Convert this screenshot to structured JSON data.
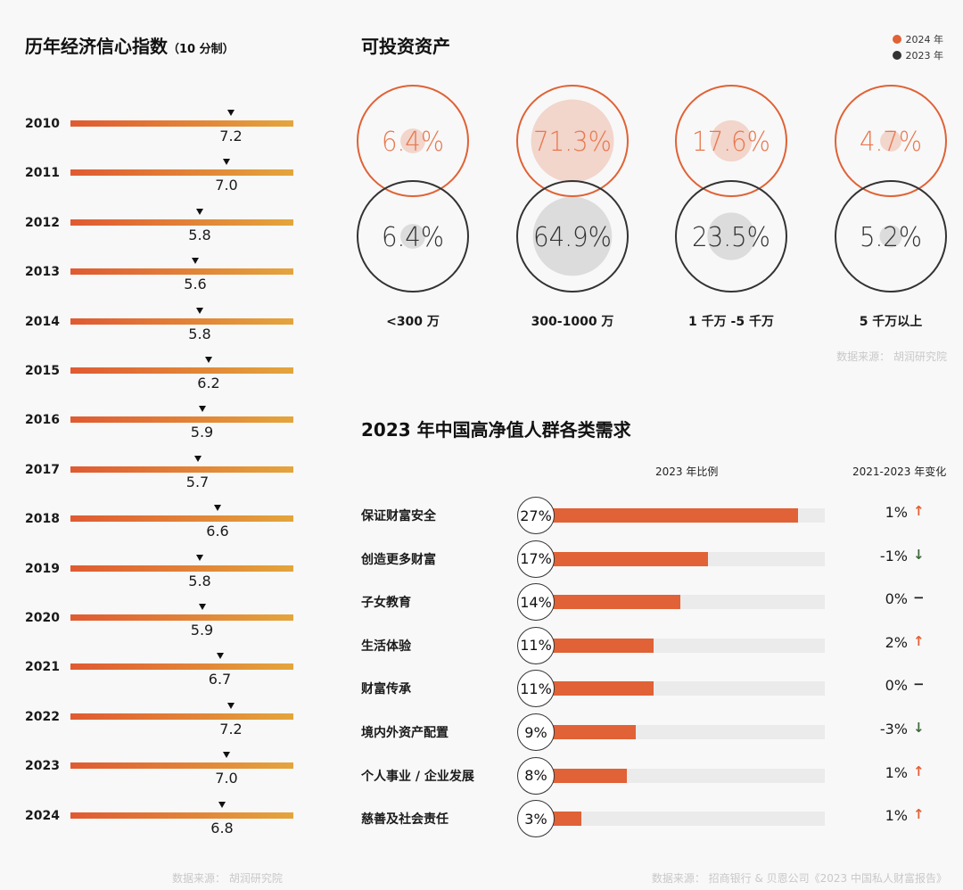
{
  "colors": {
    "accent": "#e06236",
    "dark": "#333333",
    "gradient_start": "#e05a32",
    "gradient_end": "#e4a53c",
    "up": "#e06236",
    "down": "#3e6b3a",
    "flat": "#222222",
    "fill_2024": "#f2d5cb",
    "fill_2023": "#dcdcdc",
    "source": "#c8c8c8"
  },
  "chart_data": [
    {
      "type": "bar",
      "title": "历年经济信心指数",
      "subtitle": "（10 分制）",
      "categories": [
        "2010",
        "2011",
        "2012",
        "2013",
        "2014",
        "2015",
        "2016",
        "2017",
        "2018",
        "2019",
        "2020",
        "2021",
        "2022",
        "2023",
        "2024"
      ],
      "values": [
        7.2,
        7.0,
        5.8,
        5.6,
        5.8,
        6.2,
        5.9,
        5.7,
        6.6,
        5.8,
        5.9,
        6.7,
        7.2,
        7.0,
        6.8
      ],
      "value_labels": [
        "7.2",
        "7.0",
        "5.8",
        "5.6",
        "5.8",
        "6.2",
        "5.9",
        "5.7",
        "6.6",
        "5.8",
        "5.9",
        "6.7",
        "7.2",
        "7.0",
        "6.8"
      ],
      "xlim": [
        0,
        10
      ],
      "source": "数据来源： 胡润研究院"
    },
    {
      "type": "bubble",
      "title": "可投资资产",
      "legend": [
        {
          "name": "2024 年",
          "color": "#e06236"
        },
        {
          "name": "2023 年",
          "color": "#333333"
        }
      ],
      "legend_position": "top-right",
      "categories": [
        "<300 万",
        "300-1000 万",
        "1 千万 -5 千万",
        "5 千万以上"
      ],
      "series": [
        {
          "name": "2024 年",
          "values": [
            6.4,
            71.3,
            17.6,
            4.7
          ],
          "labels": [
            "6.4%",
            "71.3%",
            "17.6%",
            "4.7%"
          ]
        },
        {
          "name": "2023 年",
          "values": [
            6.4,
            64.9,
            23.5,
            5.2
          ],
          "labels": [
            "6.4%",
            "64.9%",
            "23.5%",
            "5.2%"
          ]
        }
      ],
      "source": "数据来源： 胡润研究院"
    },
    {
      "type": "bar",
      "title": "2023 年中国高净值人群各类需求",
      "column_headers": {
        "ratio": "2023 年比例",
        "change": "2021-2023 年变化"
      },
      "categories": [
        "保证财富安全",
        "创造更多财富",
        "子女教育",
        "生活体验",
        "财富传承",
        "境内外资产配置",
        "个人事业 / 企业发展",
        "慈善及社会责任"
      ],
      "values": [
        27,
        17,
        14,
        11,
        11,
        9,
        8,
        3
      ],
      "value_labels": [
        "27%",
        "17%",
        "14%",
        "11%",
        "11%",
        "9%",
        "8%",
        "3%"
      ],
      "xlim": [
        0,
        30
      ],
      "changes": [
        1,
        -1,
        0,
        2,
        0,
        -3,
        1,
        1
      ],
      "change_labels": [
        "1%",
        "-1%",
        "0%",
        "2%",
        "0%",
        "-3%",
        "1%",
        "1%"
      ],
      "change_icons": [
        "arrow-up",
        "arrow-down",
        "dash",
        "arrow-up",
        "dash",
        "arrow-down",
        "arrow-up",
        "arrow-up"
      ],
      "source": "数据来源： 招商银行 & 贝恩公司《2023 中国私人财富报告》"
    }
  ]
}
